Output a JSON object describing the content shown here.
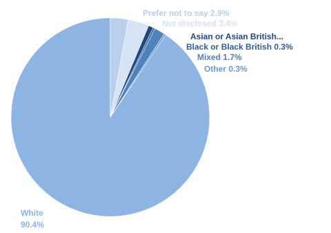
{
  "chart_data": {
    "type": "pie",
    "title": "",
    "slices": [
      {
        "label": "White",
        "value_label": "90.4%",
        "value": 90.4,
        "color": "#8eb4e3"
      },
      {
        "label": "Prefer not to say",
        "value_label": "2.9%",
        "value": 2.9,
        "color": "#b9cfee"
      },
      {
        "label": "Not disclosed",
        "value_label": "3.4%",
        "value": 3.4,
        "color": "#d6e3f5"
      },
      {
        "label": "Asian or Asian British...",
        "value_label": "",
        "value": 0.8,
        "color": "#1f497d"
      },
      {
        "label": "Black or Black British",
        "value_label": "0.3%",
        "value": 0.3,
        "color": "#2e5f99"
      },
      {
        "label": "Mixed",
        "value_label": "1.7%",
        "value": 1.7,
        "color": "#4f81bd"
      },
      {
        "label": "Other",
        "value_label": "0.3%",
        "value": 0.3,
        "color": "#6b9bd6"
      }
    ]
  }
}
